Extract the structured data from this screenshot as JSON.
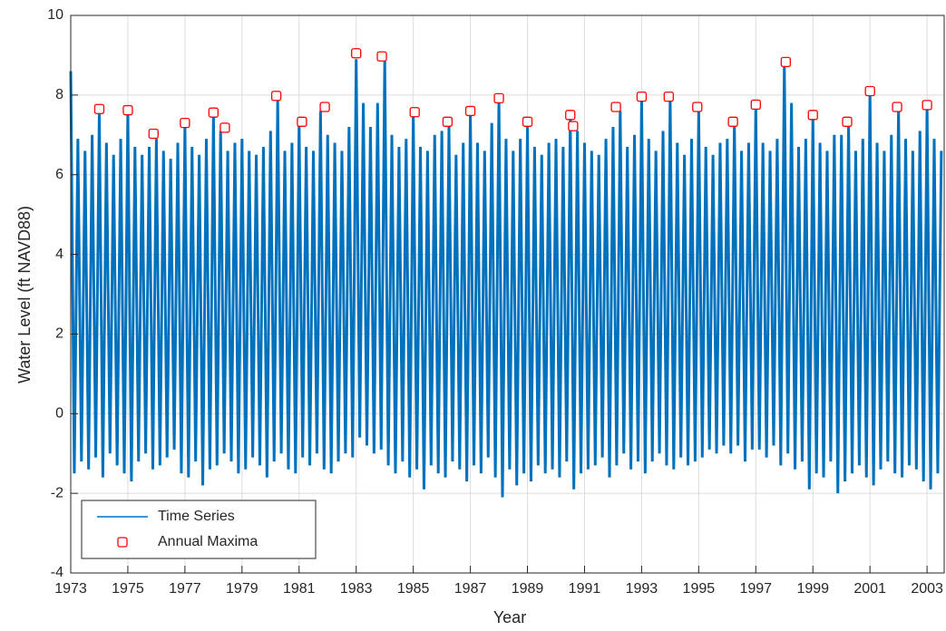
{
  "chart_data": {
    "type": "line",
    "x_label": "Year",
    "y_label": "Water Level (ft NAVD88)",
    "xlim": [
      1973,
      2003.6
    ],
    "xticks": [
      1973,
      1975,
      1977,
      1979,
      1981,
      1983,
      1985,
      1987,
      1989,
      1991,
      1993,
      1995,
      1997,
      1999,
      2001,
      2003
    ],
    "ylim": [
      -4,
      10
    ],
    "yticks": [
      -4,
      -2,
      0,
      2,
      4,
      6,
      8,
      10
    ],
    "grid": true,
    "legend": "lower left",
    "series": [
      {
        "name": "Time Series",
        "type": "line",
        "color": "#0072bd",
        "x": [
          1973,
          1973.125,
          1973.25,
          1973.375,
          1973.5,
          1973.625,
          1973.75,
          1973.875,
          1974,
          1974.125,
          1974.25,
          1974.375,
          1974.5,
          1974.625,
          1974.75,
          1974.875,
          1975,
          1975.125,
          1975.25,
          1975.375,
          1975.5,
          1975.625,
          1975.75,
          1975.875,
          1976,
          1976.125,
          1976.25,
          1976.375,
          1976.5,
          1976.625,
          1976.75,
          1976.875,
          1977,
          1977.125,
          1977.25,
          1977.375,
          1977.5,
          1977.625,
          1977.75,
          1977.875,
          1978,
          1978.125,
          1978.25,
          1978.375,
          1978.5,
          1978.625,
          1978.75,
          1978.875,
          1979,
          1979.125,
          1979.25,
          1979.375,
          1979.5,
          1979.625,
          1979.75,
          1979.875,
          1980,
          1980.125,
          1980.25,
          1980.375,
          1980.5,
          1980.625,
          1980.75,
          1980.875,
          1981,
          1981.125,
          1981.25,
          1981.375,
          1981.5,
          1981.625,
          1981.75,
          1981.875,
          1982,
          1982.125,
          1982.25,
          1982.375,
          1982.5,
          1982.625,
          1982.75,
          1982.875,
          1983,
          1983.125,
          1983.25,
          1983.375,
          1983.5,
          1983.625,
          1983.75,
          1983.875,
          1984,
          1984.125,
          1984.25,
          1984.375,
          1984.5,
          1984.625,
          1984.75,
          1984.875,
          1985,
          1985.125,
          1985.25,
          1985.375,
          1985.5,
          1985.625,
          1985.75,
          1985.875,
          1986,
          1986.125,
          1986.25,
          1986.375,
          1986.5,
          1986.625,
          1986.75,
          1986.875,
          1987,
          1987.125,
          1987.25,
          1987.375,
          1987.5,
          1987.625,
          1987.75,
          1987.875,
          1988,
          1988.125,
          1988.25,
          1988.375,
          1988.5,
          1988.625,
          1988.75,
          1988.875,
          1989,
          1989.125,
          1989.25,
          1989.375,
          1989.5,
          1989.625,
          1989.75,
          1989.875,
          1990,
          1990.125,
          1990.25,
          1990.375,
          1990.5,
          1990.625,
          1990.75,
          1990.875,
          1991,
          1991.125,
          1991.25,
          1991.375,
          1991.5,
          1991.625,
          1991.75,
          1991.875,
          1992,
          1992.125,
          1992.25,
          1992.375,
          1992.5,
          1992.625,
          1992.75,
          1992.875,
          1993,
          1993.125,
          1993.25,
          1993.375,
          1993.5,
          1993.625,
          1993.75,
          1993.875,
          1994,
          1994.125,
          1994.25,
          1994.375,
          1994.5,
          1994.625,
          1994.75,
          1994.875,
          1995,
          1995.125,
          1995.25,
          1995.375,
          1995.5,
          1995.625,
          1995.75,
          1995.875,
          1996,
          1996.125,
          1996.25,
          1996.375,
          1996.5,
          1996.625,
          1996.75,
          1996.875,
          1997,
          1997.125,
          1997.25,
          1997.375,
          1997.5,
          1997.625,
          1997.75,
          1997.875,
          1998,
          1998.125,
          1998.25,
          1998.375,
          1998.5,
          1998.625,
          1998.75,
          1998.875,
          1999,
          1999.125,
          1999.25,
          1999.375,
          1999.5,
          1999.625,
          1999.75,
          1999.875,
          2000,
          2000.125,
          2000.25,
          2000.375,
          2000.5,
          2000.625,
          2000.75,
          2000.875,
          2001,
          2001.125,
          2001.25,
          2001.375,
          2001.5,
          2001.625,
          2001.75,
          2001.875,
          2002,
          2002.125,
          2002.25,
          2002.375,
          2002.5,
          2002.625,
          2002.75,
          2002.875,
          2003,
          2003.125,
          2003.25,
          2003.375,
          2003.5
        ],
        "values": [
          8.6,
          -1.5,
          6.9,
          -1.2,
          6.6,
          -1.4,
          7.0,
          -1.1,
          7.6,
          -1.6,
          6.8,
          -1.0,
          6.5,
          -1.3,
          6.9,
          -1.5,
          7.6,
          -1.7,
          6.7,
          -1.2,
          6.5,
          -1.0,
          6.7,
          -1.4,
          6.9,
          -1.3,
          6.6,
          -1.1,
          6.4,
          -0.9,
          6.8,
          -1.5,
          7.2,
          -1.6,
          6.7,
          -1.2,
          6.5,
          -1.8,
          6.9,
          -1.4,
          7.5,
          -1.3,
          7.1,
          -1.0,
          6.6,
          -1.2,
          6.8,
          -1.5,
          6.9,
          -1.4,
          6.6,
          -1.1,
          6.5,
          -1.3,
          6.7,
          -1.6,
          7.1,
          -1.2,
          7.9,
          -1.0,
          6.6,
          -1.4,
          6.8,
          -1.5,
          7.3,
          -1.1,
          6.7,
          -1.3,
          6.6,
          -1.0,
          7.6,
          -1.4,
          7.0,
          -1.5,
          6.8,
          -1.2,
          6.6,
          -1.0,
          7.2,
          -1.1,
          8.9,
          -0.6,
          7.8,
          -0.8,
          7.2,
          -1.0,
          7.8,
          -0.9,
          8.9,
          -1.3,
          7.0,
          -1.5,
          6.7,
          -1.2,
          6.9,
          -1.6,
          7.5,
          -1.4,
          6.7,
          -1.9,
          6.6,
          -1.3,
          7.0,
          -1.5,
          7.1,
          -1.6,
          7.2,
          -1.2,
          6.5,
          -1.4,
          6.8,
          -1.7,
          7.5,
          -1.3,
          6.8,
          -1.5,
          6.6,
          -1.1,
          7.3,
          -1.6,
          7.9,
          -2.1,
          6.9,
          -1.4,
          6.6,
          -1.8,
          6.9,
          -1.5,
          7.2,
          -1.7,
          6.7,
          -1.3,
          6.5,
          -1.5,
          6.8,
          -1.4,
          6.9,
          -1.6,
          6.7,
          -1.2,
          7.4,
          -1.9,
          7.1,
          -1.5,
          6.8,
          -1.4,
          6.6,
          -1.3,
          6.5,
          -1.1,
          6.9,
          -1.6,
          7.2,
          -1.3,
          7.6,
          -1.0,
          6.7,
          -1.4,
          7.0,
          -1.2,
          7.9,
          -1.5,
          6.9,
          -1.2,
          6.6,
          -1.0,
          7.1,
          -1.3,
          7.9,
          -1.4,
          6.8,
          -1.1,
          6.5,
          -1.3,
          6.9,
          -1.2,
          7.6,
          -1.1,
          6.7,
          -0.9,
          6.5,
          -1.0,
          6.8,
          -0.8,
          6.9,
          -1.0,
          7.3,
          -0.8,
          6.6,
          -1.2,
          6.8,
          -0.9,
          7.7,
          -0.9,
          6.8,
          -1.1,
          6.6,
          -0.8,
          6.9,
          -1.3,
          8.8,
          -1.0,
          7.8,
          -1.4,
          6.7,
          -1.2,
          6.9,
          -1.9,
          7.4,
          -1.5,
          6.8,
          -1.6,
          6.6,
          -1.2,
          7.0,
          -2.0,
          7.0,
          -1.7,
          7.3,
          -1.5,
          6.6,
          -1.3,
          6.9,
          -1.6,
          8.1,
          -1.8,
          6.8,
          -1.4,
          6.6,
          -1.2,
          7.0,
          -1.5,
          7.7,
          -1.6,
          6.9,
          -1.3,
          6.6,
          -1.4,
          7.1,
          -1.7,
          7.7,
          -1.9,
          6.9,
          -1.5,
          6.6
        ]
      },
      {
        "name": "Annual Maxima",
        "type": "scatter",
        "color": "#ff0000",
        "x": [
          1974.0,
          1975.0,
          1975.9,
          1977.0,
          1978.0,
          1978.4,
          1980.2,
          1981.1,
          1981.9,
          1983.0,
          1983.9,
          1985.05,
          1986.2,
          1987.0,
          1988.0,
          1989.0,
          1990.5,
          1990.6,
          1992.1,
          1993.0,
          1993.95,
          1994.95,
          1996.2,
          1997.0,
          1998.05,
          1999.0,
          2000.2,
          2001.0,
          2001.95,
          2003.0
        ],
        "values": [
          7.65,
          7.62,
          7.03,
          7.3,
          7.56,
          7.18,
          7.98,
          7.33,
          7.7,
          9.05,
          8.97,
          7.57,
          7.33,
          7.6,
          7.92,
          7.33,
          7.5,
          7.22,
          7.7,
          7.96,
          7.96,
          7.7,
          7.33,
          7.76,
          8.83,
          7.5,
          7.33,
          8.1,
          7.7,
          7.75
        ]
      }
    ]
  }
}
